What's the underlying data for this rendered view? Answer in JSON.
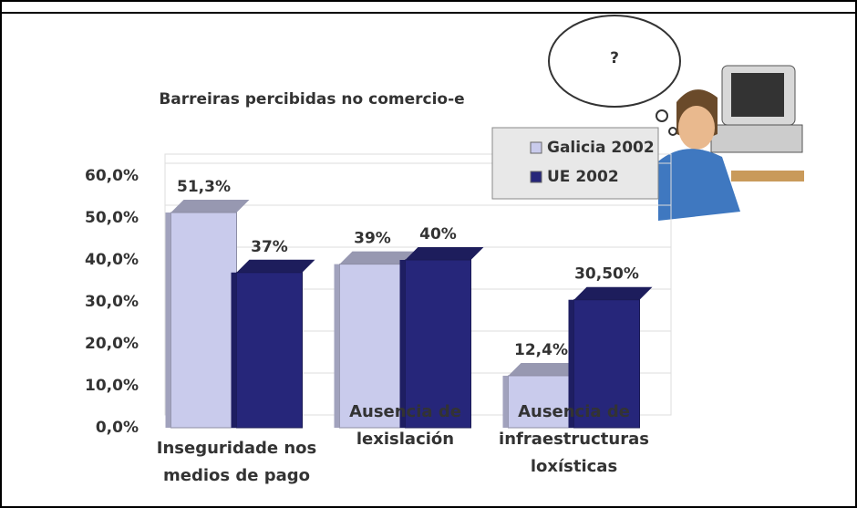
{
  "chart_data": {
    "type": "bar",
    "title": "Barreiras percibidas no comercio-e",
    "annotation": "?",
    "categories": [
      "Inseguridade nos medios de pago",
      "Ausencia de lexislación",
      "Ausencia de infraestructuras loxísticas"
    ],
    "series": [
      {
        "name": "Galicia 2002",
        "color": "#c9cbec",
        "values": [
          51.3,
          39,
          12.4
        ],
        "value_labels": [
          "51,3%",
          "39%",
          "12,4%"
        ]
      },
      {
        "name": "UE 2002",
        "color": "#26267a",
        "values": [
          37,
          40,
          30.5
        ],
        "value_labels": [
          "37%",
          "40%",
          "30,50%"
        ]
      }
    ],
    "ylim": [
      0,
      60
    ],
    "yticks": [
      {
        "value": 0,
        "label": "0,0%"
      },
      {
        "value": 10,
        "label": "10,0%"
      },
      {
        "value": 20,
        "label": "20,0%"
      },
      {
        "value": 30,
        "label": "30,0%"
      },
      {
        "value": 40,
        "label": "40,0%"
      },
      {
        "value": 50,
        "label": "50,0%"
      },
      {
        "value": 60,
        "label": "60,0%"
      }
    ],
    "grid": true,
    "legend": "upper right"
  }
}
